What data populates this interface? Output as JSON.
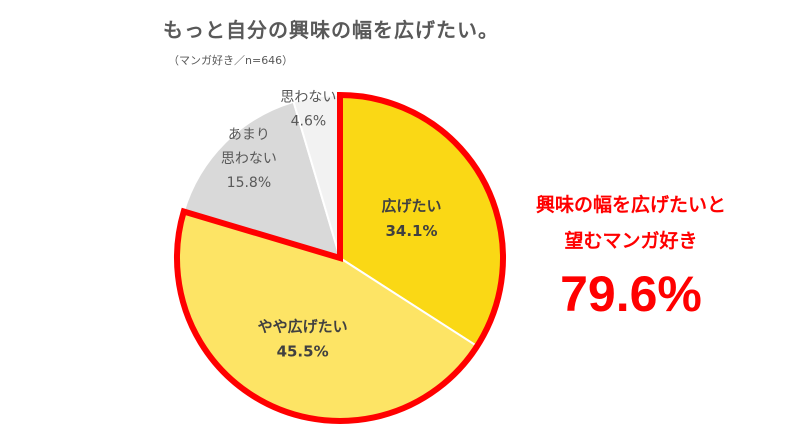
{
  "title": "もっと自分の興味の幅を広げたい。",
  "subtitle": "（マンガ好き／n=646）",
  "callout": {
    "line1": "興味の幅を広げたいと",
    "line2": "望むマンガ好き",
    "total": "79.6%"
  },
  "colors": {
    "slice_1": "#fad815",
    "slice_2": "#fde465",
    "slice_3": "#d9d9d9",
    "slice_4": "#f2f2f2",
    "highlight": "#ff0000",
    "label_dark": "#404040",
    "label_light": "#595959"
  },
  "chart_data": {
    "type": "pie",
    "title": "もっと自分の興味の幅を広げたい。",
    "subtitle": "（マンガ好き／n=646）",
    "slices": [
      {
        "label": [
          "広げたい"
        ],
        "value": 34.1,
        "value_label": "34.1%",
        "color": "#fad815",
        "highlighted": true
      },
      {
        "label": [
          "やや広げたい"
        ],
        "value": 45.5,
        "value_label": "45.5%",
        "color": "#fde465",
        "highlighted": true
      },
      {
        "label": [
          "あまり",
          "思わない"
        ],
        "value": 15.8,
        "value_label": "15.8%",
        "color": "#d9d9d9",
        "highlighted": false
      },
      {
        "label": [
          "思わない"
        ],
        "value": 4.6,
        "value_label": "4.6%",
        "color": "#f2f2f2",
        "highlighted": false
      }
    ],
    "start": "12 o'clock",
    "direction": "clockwise",
    "highlight_group": {
      "slices": [
        "広げたい",
        "やや広げたい"
      ],
      "value": 79.6
    }
  }
}
